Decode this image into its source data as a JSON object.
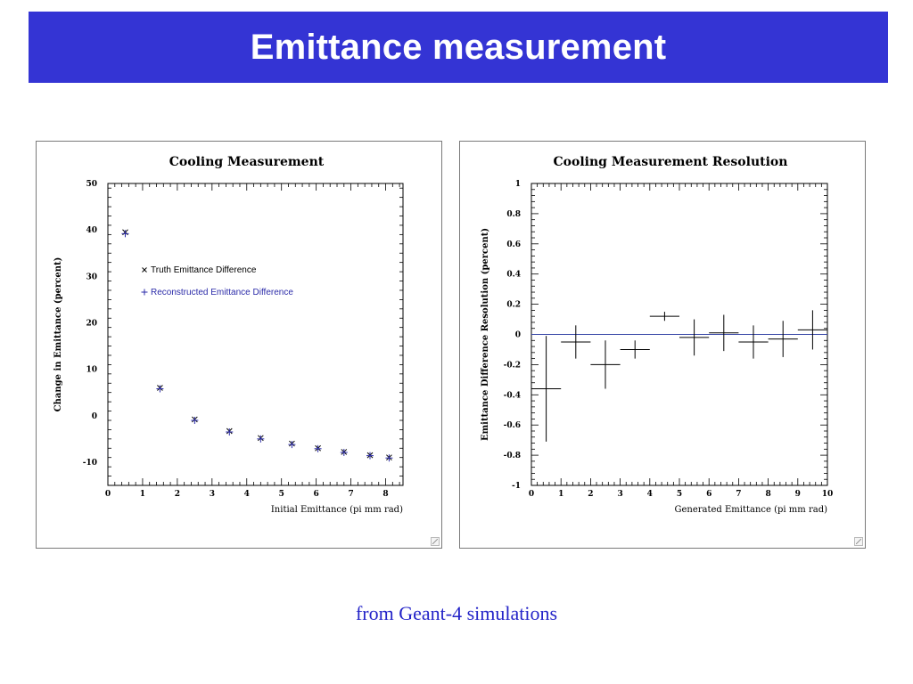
{
  "slide": {
    "title": "Emittance measurement",
    "caption": "from Geant-4 simulations",
    "title_bg": "#3434d4",
    "caption_color": "#2424c8"
  },
  "chart_data": [
    {
      "type": "scatter",
      "title": "Cooling Measurement",
      "xlabel": "Initial Emittance (pi mm rad)",
      "ylabel": "Change in Emittance (percent)",
      "xlim": [
        0,
        8.5
      ],
      "ylim": [
        -15,
        50
      ],
      "xticks": [
        "0",
        "1",
        "2",
        "3",
        "4",
        "5",
        "6",
        "7",
        "8"
      ],
      "yticks": [
        "-10",
        "0",
        "10",
        "20",
        "30",
        "40",
        "50"
      ],
      "legend_position": "center",
      "series": [
        {
          "name": "Truth Emittance Difference",
          "marker": "x",
          "color": "#000000",
          "x": [
            0.5,
            1.5,
            2.5,
            3.5,
            4.4,
            5.3,
            6.05,
            6.8,
            7.55,
            8.1
          ],
          "y": [
            39.5,
            6,
            -0.8,
            -3.3,
            -4.8,
            -6,
            -7,
            -7.8,
            -8.5,
            -9
          ]
        },
        {
          "name": "Reconstructed Emittance Difference",
          "marker": "+",
          "color": "#2a2aa8",
          "x": [
            0.5,
            1.5,
            2.5,
            3.5,
            4.4,
            5.3,
            6.05,
            6.8,
            7.55,
            8.1
          ],
          "y": [
            39.2,
            5.8,
            -1.0,
            -3.5,
            -5.0,
            -6.2,
            -7.1,
            -7.9,
            -8.6,
            -9.1
          ]
        }
      ],
      "legend": [
        {
          "marker": "x",
          "label": "Truth Emittance Difference",
          "color": "#000000"
        },
        {
          "marker": "+",
          "label": "Reconstructed Emittance Difference",
          "color": "#2a2aa8"
        }
      ]
    },
    {
      "type": "scatter",
      "title": "Cooling Measurement Resolution",
      "xlabel": "Generated Emittance (pi mm rad)",
      "ylabel": "Emittance Difference Resolution (percent)",
      "xlim": [
        0,
        10
      ],
      "ylim": [
        -1,
        1
      ],
      "xticks": [
        "0",
        "1",
        "2",
        "3",
        "4",
        "5",
        "6",
        "7",
        "8",
        "9",
        "10"
      ],
      "yticks": [
        "-1",
        "-0.8",
        "-0.6",
        "-0.4",
        "-0.2",
        "0",
        "0.2",
        "0.4",
        "0.6",
        "0.8",
        "1"
      ],
      "reference_line_y": 0,
      "reference_line_color": "#3a4aa8",
      "points": [
        {
          "x": 0.5,
          "y": -0.36,
          "xerr": 0.5,
          "yerr": 0.35
        },
        {
          "x": 1.5,
          "y": -0.05,
          "xerr": 0.5,
          "yerr": 0.11
        },
        {
          "x": 2.5,
          "y": -0.2,
          "xerr": 0.5,
          "yerr": 0.16
        },
        {
          "x": 3.5,
          "y": -0.1,
          "xerr": 0.5,
          "yerr": 0.06
        },
        {
          "x": 4.5,
          "y": 0.12,
          "xerr": 0.5,
          "yerr": 0.03
        },
        {
          "x": 5.5,
          "y": -0.02,
          "xerr": 0.5,
          "yerr": 0.12
        },
        {
          "x": 6.5,
          "y": 0.01,
          "xerr": 0.5,
          "yerr": 0.12
        },
        {
          "x": 7.5,
          "y": -0.05,
          "xerr": 0.5,
          "yerr": 0.11
        },
        {
          "x": 8.5,
          "y": -0.03,
          "xerr": 0.5,
          "yerr": 0.12
        },
        {
          "x": 9.5,
          "y": 0.03,
          "xerr": 0.5,
          "yerr": 0.13
        }
      ]
    }
  ]
}
